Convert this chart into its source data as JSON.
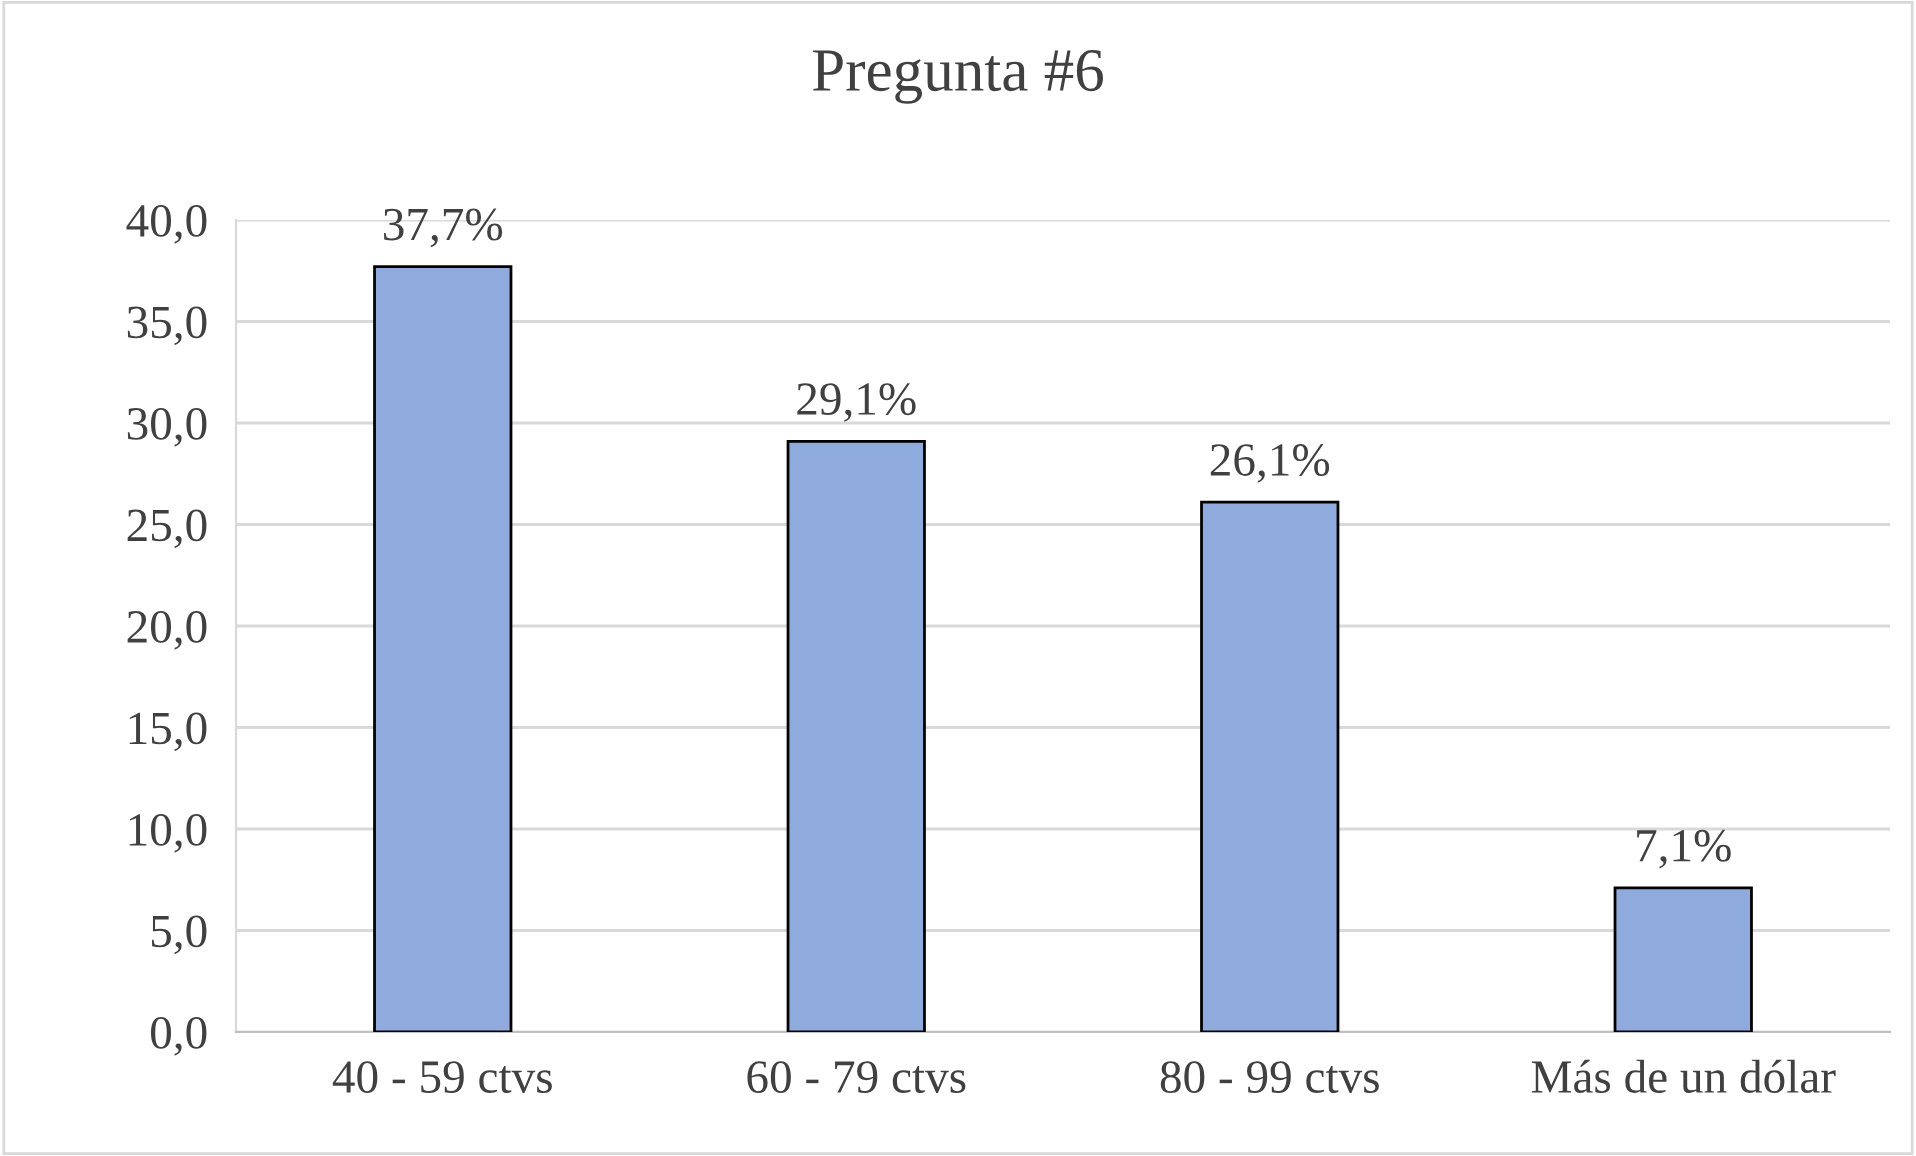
{
  "chart_data": {
    "type": "bar",
    "title": "Pregunta #6",
    "categories": [
      "40 - 59 ctvs",
      "60 - 79 ctvs",
      "80 - 99 ctvs",
      "Más de un dólar"
    ],
    "values": [
      37.7,
      29.1,
      26.1,
      7.1
    ],
    "value_labels": [
      "37,7%",
      "29,1%",
      "26,1%",
      "7,1%"
    ],
    "color": "#8faadc",
    "ylim": [
      0,
      40
    ],
    "yticks": [
      {
        "value": 0,
        "label": "0,0"
      },
      {
        "value": 5,
        "label": "5,0"
      },
      {
        "value": 10,
        "label": "10,0"
      },
      {
        "value": 15,
        "label": "15,0"
      },
      {
        "value": 20,
        "label": "20,0"
      },
      {
        "value": 25,
        "label": "25,0"
      },
      {
        "value": 30,
        "label": "30,0"
      },
      {
        "value": 35,
        "label": "35,0"
      },
      {
        "value": 40,
        "label": "40,0"
      }
    ],
    "grid": "y",
    "legend": false
  }
}
